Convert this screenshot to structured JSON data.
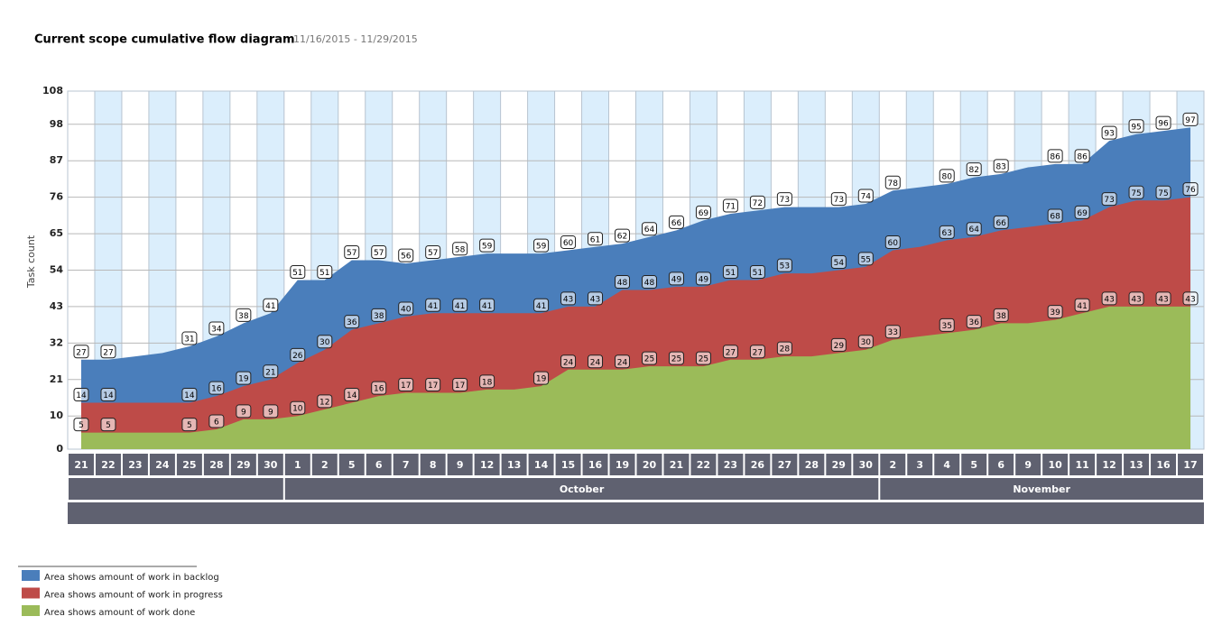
{
  "chart_data": {
    "type": "area",
    "title": "Current scope cumulative flow diagram",
    "subtitle": "11/16/2015 - 11/29/2015",
    "y_label": "Task count",
    "categories": [
      "21",
      "22",
      "23",
      "24",
      "25",
      "28",
      "29",
      "30",
      "1",
      "2",
      "5",
      "6",
      "7",
      "8",
      "9",
      "12",
      "13",
      "14",
      "15",
      "16",
      "19",
      "20",
      "21",
      "22",
      "23",
      "26",
      "27",
      "28",
      "29",
      "30",
      "2",
      "3",
      "4",
      "5",
      "6",
      "9",
      "10",
      "11",
      "12",
      "13",
      "16",
      "17"
    ],
    "months": [
      null,
      null,
      null,
      null,
      null,
      null,
      null,
      null,
      "October",
      "October",
      "October",
      "October",
      "October",
      "October",
      "October",
      "October",
      "October",
      "October",
      "October",
      "October",
      "October",
      "October",
      "October",
      "October",
      "October",
      "October",
      "October",
      "October",
      "October",
      "October",
      "November",
      "November",
      "November",
      "November",
      "November",
      "November",
      "November",
      "November",
      "November",
      "November",
      "November",
      "November"
    ],
    "ylim": [
      0,
      108
    ],
    "yticks": [
      0,
      10,
      21,
      32,
      43,
      54,
      65,
      76,
      87,
      98,
      108
    ],
    "grid": true,
    "series": [
      {
        "name": "Area shows amount of work in backlog",
        "color": "#4a7ebb",
        "values": [
          27,
          27,
          28,
          29,
          31,
          34,
          38,
          41,
          51,
          51,
          57,
          57,
          56,
          57,
          58,
          59,
          59,
          59,
          60,
          61,
          62,
          64,
          66,
          69,
          71,
          72,
          73,
          73,
          73,
          74,
          78,
          79,
          80,
          82,
          83,
          85,
          86,
          86,
          93,
          95,
          96,
          97
        ],
        "value_labels": [
          27,
          27,
          null,
          null,
          31,
          34,
          38,
          41,
          51,
          51,
          57,
          57,
          56,
          57,
          58,
          59,
          null,
          59,
          60,
          61,
          62,
          64,
          66,
          69,
          71,
          72,
          73,
          null,
          73,
          74,
          78,
          null,
          80,
          82,
          83,
          null,
          86,
          86,
          93,
          95,
          96,
          97
        ]
      },
      {
        "name": "Area shows amount of work in progress",
        "color": "#be4b48",
        "values": [
          14,
          14,
          14,
          14,
          14,
          16,
          19,
          21,
          26,
          30,
          36,
          38,
          40,
          41,
          41,
          41,
          41,
          41,
          43,
          43,
          48,
          48,
          49,
          49,
          51,
          51,
          53,
          53,
          54,
          55,
          60,
          61,
          63,
          64,
          66,
          67,
          68,
          69,
          73,
          75,
          75,
          76
        ],
        "value_labels": [
          14,
          14,
          null,
          null,
          14,
          16,
          19,
          21,
          26,
          30,
          36,
          38,
          40,
          41,
          41,
          41,
          null,
          41,
          43,
          43,
          48,
          48,
          49,
          49,
          51,
          51,
          53,
          null,
          54,
          55,
          60,
          null,
          63,
          64,
          66,
          null,
          68,
          69,
          73,
          75,
          75,
          76
        ]
      },
      {
        "name": "Area shows amount of work done",
        "color": "#9bbb59",
        "values": [
          5,
          5,
          5,
          5,
          5,
          6,
          9,
          9,
          10,
          12,
          14,
          16,
          17,
          17,
          17,
          18,
          18,
          19,
          24,
          24,
          24,
          25,
          25,
          25,
          27,
          27,
          28,
          28,
          29,
          30,
          33,
          34,
          35,
          36,
          38,
          38,
          39,
          41,
          43,
          43,
          43,
          43
        ],
        "value_labels": [
          5,
          5,
          null,
          null,
          5,
          6,
          9,
          9,
          10,
          12,
          14,
          16,
          17,
          17,
          17,
          18,
          null,
          19,
          24,
          24,
          24,
          25,
          25,
          25,
          27,
          27,
          28,
          null,
          29,
          30,
          33,
          null,
          35,
          36,
          38,
          null,
          39,
          41,
          43,
          43,
          43,
          43
        ]
      }
    ]
  }
}
